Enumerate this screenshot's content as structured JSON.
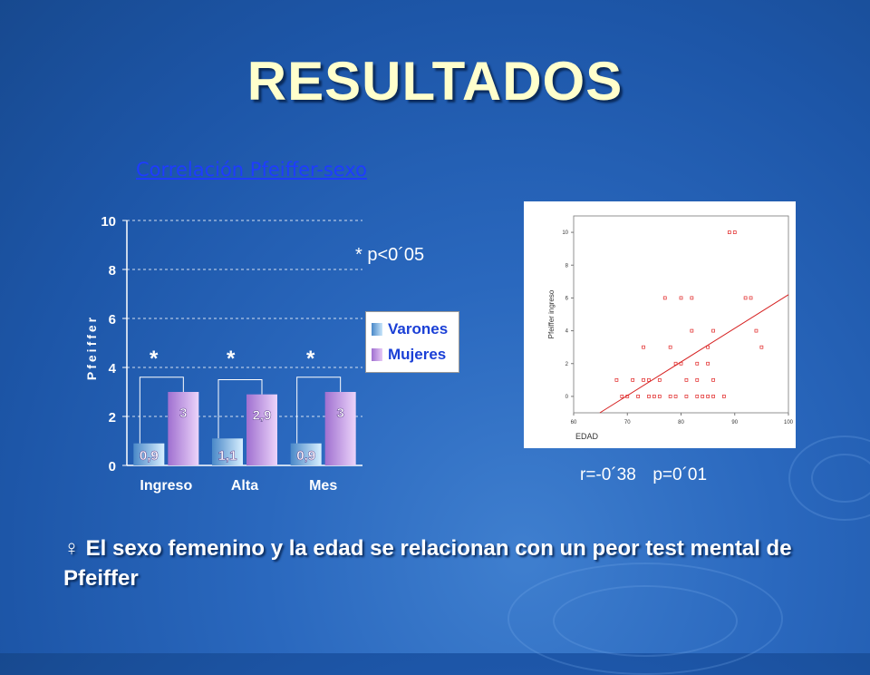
{
  "slide": {
    "title": "RESULTADOS",
    "conclusion": "♀ El sexo femenino y la edad se relacionan con un peor test mental de Pfeiffer"
  },
  "chart_data": [
    {
      "type": "bar",
      "title": "Correlación Pfeiffer-sexo",
      "ylabel": "Pfeiffer",
      "ylim": [
        0,
        10
      ],
      "yticks": [
        "0",
        "2",
        "4",
        "6",
        "8",
        "10"
      ],
      "categories": [
        "Ingreso",
        "Alta",
        "Mes"
      ],
      "series": [
        {
          "name": "Varones",
          "values": [
            0.9,
            1.1,
            0.9
          ],
          "labels": [
            "0,9",
            "1,1",
            "0,9"
          ],
          "color": "#9fd0f0"
        },
        {
          "name": "Mujeres",
          "values": [
            3,
            2.9,
            3
          ],
          "labels": [
            "3",
            "2,9",
            "3"
          ],
          "color": "#c89ae6"
        }
      ],
      "significance_marks": [
        "*",
        "*",
        "*"
      ],
      "significance_note": "* p<0´05",
      "grid": true,
      "legend": "right"
    },
    {
      "type": "scatter",
      "xlabel": "EDAD",
      "ylabel": "Pfeiffer ingreso",
      "xlim": [
        60,
        100
      ],
      "ylim": [
        -1,
        11
      ],
      "xticks": [
        "60",
        "70",
        "80",
        "90",
        "100"
      ],
      "yticks": [
        "0",
        "2",
        "4",
        "6",
        "8",
        "10"
      ],
      "points": [
        [
          68,
          1
        ],
        [
          69,
          0
        ],
        [
          70,
          0
        ],
        [
          71,
          1
        ],
        [
          72,
          0
        ],
        [
          73,
          1
        ],
        [
          73,
          3
        ],
        [
          74,
          1
        ],
        [
          74,
          0
        ],
        [
          75,
          0
        ],
        [
          76,
          1
        ],
        [
          76,
          0
        ],
        [
          77,
          6
        ],
        [
          78,
          3
        ],
        [
          78,
          0
        ],
        [
          79,
          2
        ],
        [
          79,
          0
        ],
        [
          80,
          2
        ],
        [
          80,
          6
        ],
        [
          81,
          1
        ],
        [
          81,
          0
        ],
        [
          82,
          4
        ],
        [
          82,
          6
        ],
        [
          83,
          2
        ],
        [
          83,
          1
        ],
        [
          83,
          0
        ],
        [
          84,
          0
        ],
        [
          85,
          2
        ],
        [
          85,
          3
        ],
        [
          85,
          0
        ],
        [
          86,
          4
        ],
        [
          86,
          1
        ],
        [
          86,
          0
        ],
        [
          88,
          0
        ],
        [
          89,
          10
        ],
        [
          90,
          10
        ],
        [
          92,
          6
        ],
        [
          93,
          6
        ],
        [
          94,
          4
        ],
        [
          95,
          3
        ]
      ],
      "fit_line": {
        "x": [
          60,
          100
        ],
        "y": [
          -2,
          6.2
        ]
      },
      "stats": {
        "r": "r=-0´38",
        "p": "p=0´01"
      }
    }
  ]
}
